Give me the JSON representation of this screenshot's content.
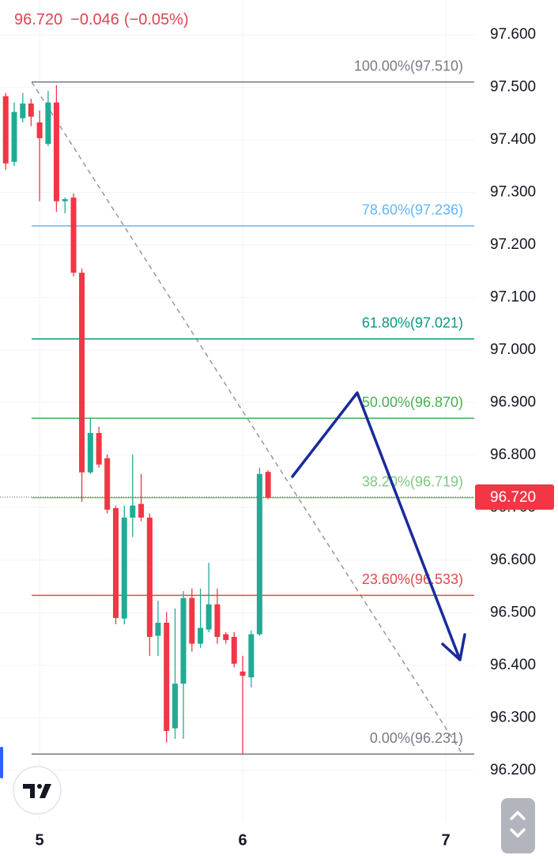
{
  "chart_data": {
    "type": "candlestick",
    "header": {
      "price": "96.720",
      "change": "−0.046",
      "change_pct": "(−0.05%)"
    },
    "x": [
      4.833,
      4.875,
      4.917,
      4.958,
      5,
      5.042,
      5.083,
      5.125,
      5.167,
      5.208,
      5.25,
      5.292,
      5.333,
      5.375,
      5.417,
      5.458,
      5.5,
      5.542,
      5.583,
      5.625,
      5.667,
      5.708,
      5.75,
      5.792,
      5.833,
      5.875,
      5.917,
      5.958,
      6,
      6.042,
      6.083,
      6.125
    ],
    "open": [
      97.483,
      97.358,
      97.441,
      97.469,
      97.433,
      97.392,
      97.471,
      97.283,
      97.29,
      97.147,
      96.767,
      96.842,
      96.794,
      96.699,
      96.489,
      96.681,
      96.707,
      96.681,
      96.456,
      96.481,
      96.28,
      96.365,
      96.528,
      96.441,
      96.468,
      96.516,
      96.459,
      96.454,
      96.388,
      96.377,
      96.459,
      96.768
    ],
    "high": [
      97.489,
      97.471,
      97.489,
      97.478,
      97.456,
      97.493,
      97.504,
      97.29,
      97.298,
      97.155,
      96.869,
      96.854,
      96.801,
      96.704,
      96.704,
      96.801,
      96.764,
      96.689,
      96.523,
      96.501,
      96.508,
      96.541,
      96.546,
      96.546,
      96.595,
      96.546,
      96.463,
      96.463,
      96.418,
      96.466,
      96.776,
      96.771
    ],
    "low": [
      97.343,
      97.35,
      97.433,
      97.426,
      97.283,
      97.388,
      97.263,
      97.26,
      97.14,
      96.711,
      96.764,
      96.776,
      96.689,
      96.478,
      96.478,
      96.644,
      96.674,
      96.418,
      96.418,
      96.253,
      96.26,
      96.26,
      96.426,
      96.433,
      96.463,
      96.441,
      96.441,
      96.396,
      96.23,
      96.358,
      96.456,
      96.716
    ],
    "close": [
      97.355,
      97.453,
      97.469,
      97.444,
      97.403,
      97.471,
      97.283,
      97.287,
      97.147,
      96.767,
      96.842,
      96.782,
      96.696,
      96.49,
      96.681,
      96.704,
      96.681,
      96.454,
      96.481,
      96.275,
      96.365,
      96.528,
      96.441,
      96.471,
      96.516,
      96.454,
      96.448,
      96.403,
      96.38,
      96.459,
      96.764,
      96.719
    ],
    "up_color": "#22ab94",
    "down_color": "#f23645",
    "xlim": [
      4.805,
      7.14
    ],
    "xticks": [
      5,
      6,
      7
    ],
    "ylim": [
      96.102,
      97.666
    ],
    "yticks": [
      {
        "value": 97.6,
        "label": "97.600"
      },
      {
        "value": 97.5,
        "label": "97.500"
      },
      {
        "value": 97.4,
        "label": "97.400"
      },
      {
        "value": 97.3,
        "label": "97.300"
      },
      {
        "value": 97.2,
        "label": "97.200"
      },
      {
        "value": 97.1,
        "label": "97.100"
      },
      {
        "value": 97.0,
        "label": "97.000"
      },
      {
        "value": 96.9,
        "label": "96.900"
      },
      {
        "value": 96.8,
        "label": "96.800"
      },
      {
        "value": 96.7,
        "label": "96.700"
      },
      {
        "value": 96.6,
        "label": "96.600"
      },
      {
        "value": 96.5,
        "label": "96.500"
      },
      {
        "value": 96.4,
        "label": "96.400"
      },
      {
        "value": 96.3,
        "label": "96.300"
      },
      {
        "value": 96.2,
        "label": "96.200"
      }
    ],
    "grid": true,
    "fib_x": [
      4.961,
      7.082
    ],
    "fib_levels": [
      {
        "label": "100.00%(97.510)",
        "value": 97.51,
        "color": "#787b86"
      },
      {
        "label": "78.60%(97.236)",
        "value": 97.236,
        "color": "#64b5f6"
      },
      {
        "label": "61.80%(97.021)",
        "value": 97.021,
        "color": "#089981"
      },
      {
        "label": "50.00%(96.870)",
        "value": 96.87,
        "color": "#4caf50"
      },
      {
        "label": "38.20%(96.719)",
        "value": 96.719,
        "color": "#81c784"
      },
      {
        "label": "23.60%(96.533)",
        "value": 96.533,
        "color": "#e04a4a"
      },
      {
        "label": "0.00%(96.231)",
        "value": 96.231,
        "color": "#787b86"
      }
    ],
    "last_price": {
      "value": 96.72,
      "label": "96.720",
      "color": "#f23645"
    }
  }
}
